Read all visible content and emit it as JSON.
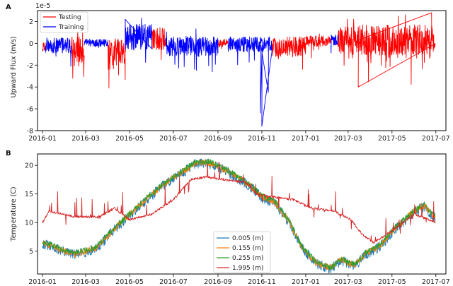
{
  "chart_data": [
    {
      "type": "line",
      "panel_label": "A",
      "ylabel": "Upward Flux (m/s)",
      "offset_text": "1e-5",
      "ylim": [
        -8,
        3
      ],
      "yticks": [
        2,
        0,
        -2,
        -4,
        -6,
        -8
      ],
      "xlim": [
        "2015-12-25",
        "2017-07-15"
      ],
      "xticks": [
        "2016-01",
        "2016-03",
        "2016-05",
        "2016-07",
        "2016-09",
        "2016-11",
        "2017-01",
        "2017-03",
        "2017-05",
        "2017-07"
      ],
      "legend": {
        "location": "upper-left"
      },
      "series": [
        {
          "name": "Testing",
          "color": "#ff0000",
          "segments": [
            {
              "start": "2016-01-01",
              "end": "2016-01-05",
              "mean": -0.3,
              "noise": 0.4
            },
            {
              "start": "2016-02-10",
              "end": "2016-02-28",
              "mean": -0.6,
              "noise": 1.2
            },
            {
              "start": "2016-04-01",
              "end": "2016-04-25",
              "mean": -0.8,
              "noise": 1.3
            },
            {
              "start": "2016-06-01",
              "end": "2016-06-20",
              "mean": 0.4,
              "noise": 1.0
            },
            {
              "start": "2016-09-01",
              "end": "2016-09-15",
              "mean": 0.1,
              "noise": 0.3
            },
            {
              "start": "2016-11-15",
              "end": "2017-01-01",
              "mean": -0.3,
              "noise": 0.9
            },
            {
              "start": "2017-01-01",
              "end": "2017-02-05",
              "mean": 0.2,
              "noise": 0.5
            },
            {
              "start": "2017-02-15",
              "end": "2017-06-30",
              "mean": 0.3,
              "noise": 1.4
            }
          ]
        },
        {
          "name": "Training",
          "color": "#0000ff",
          "segments": [
            {
              "start": "2016-01-05",
              "end": "2016-02-10",
              "mean": -0.2,
              "noise": 0.7
            },
            {
              "start": "2016-02-28",
              "end": "2016-04-01",
              "mean": 0.0,
              "noise": 0.4
            },
            {
              "start": "2016-04-25",
              "end": "2016-06-01",
              "mean": 0.6,
              "noise": 1.2
            },
            {
              "start": "2016-06-20",
              "end": "2016-09-01",
              "mean": -0.3,
              "noise": 0.9
            },
            {
              "start": "2016-09-15",
              "end": "2016-11-15",
              "mean": -0.1,
              "noise": 0.7
            },
            {
              "start": "2017-02-05",
              "end": "2017-02-15",
              "mean": 0.3,
              "noise": 0.5
            }
          ]
        }
      ],
      "notable_points": [
        {
          "x": "2016-11-01",
          "y": -7.6
        },
        {
          "x": "2016-10-30",
          "y": -6.4
        },
        {
          "x": "2016-11-10",
          "y": -4.5
        },
        {
          "x": "2017-03-15",
          "y": -4.0
        },
        {
          "x": "2016-04-25",
          "y": 2.2
        },
        {
          "x": "2017-06-25",
          "y": 2.8
        }
      ]
    },
    {
      "type": "line",
      "panel_label": "B",
      "ylabel": "Temperature (C)",
      "ylim": [
        1,
        22
      ],
      "yticks": [
        20,
        15,
        10,
        5
      ],
      "xlim": [
        "2015-12-25",
        "2017-07-15"
      ],
      "xticks": [
        "2016-01",
        "2016-03",
        "2016-05",
        "2016-07",
        "2016-09",
        "2016-11",
        "2017-01",
        "2017-03",
        "2017-05",
        "2017-07"
      ],
      "legend": {
        "location": "lower-center"
      },
      "series": [
        {
          "name": "0.005 (m)",
          "color": "#1f77b4",
          "noise": 0.9
        },
        {
          "name": "0.155 (m)",
          "color": "#ff7f0e",
          "noise": 0.6
        },
        {
          "name": "0.255 (m)",
          "color": "#2ca02c",
          "noise": 0.5
        },
        {
          "name": "1.995 (m)",
          "color": "#d62728",
          "noise": 0.2
        }
      ],
      "shallow_profile": [
        {
          "x": "2016-01-01",
          "y": 6.5
        },
        {
          "x": "2016-02-01",
          "y": 5.0
        },
        {
          "x": "2016-02-15",
          "y": 4.5
        },
        {
          "x": "2016-03-15",
          "y": 5.5
        },
        {
          "x": "2016-04-15",
          "y": 9.5
        },
        {
          "x": "2016-05-15",
          "y": 13.0
        },
        {
          "x": "2016-06-15",
          "y": 16.5
        },
        {
          "x": "2016-07-15",
          "y": 19.0
        },
        {
          "x": "2016-08-01",
          "y": 20.5
        },
        {
          "x": "2016-08-20",
          "y": 20.5
        },
        {
          "x": "2016-09-15",
          "y": 19.0
        },
        {
          "x": "2016-10-15",
          "y": 16.5
        },
        {
          "x": "2016-11-01",
          "y": 14.5
        },
        {
          "x": "2016-11-20",
          "y": 13.5
        },
        {
          "x": "2016-12-10",
          "y": 10.0
        },
        {
          "x": "2016-12-25",
          "y": 6.0
        },
        {
          "x": "2017-01-15",
          "y": 3.0
        },
        {
          "x": "2017-02-05",
          "y": 2.0
        },
        {
          "x": "2017-02-20",
          "y": 3.5
        },
        {
          "x": "2017-03-10",
          "y": 2.5
        },
        {
          "x": "2017-03-25",
          "y": 4.5
        },
        {
          "x": "2017-04-15",
          "y": 6.0
        },
        {
          "x": "2017-05-05",
          "y": 9.0
        },
        {
          "x": "2017-06-01",
          "y": 12.0
        },
        {
          "x": "2017-06-15",
          "y": 13.0
        },
        {
          "x": "2017-06-28",
          "y": 11.0
        }
      ],
      "deep_profile": [
        {
          "x": "2016-01-01",
          "y": 10.0
        },
        {
          "x": "2016-01-10",
          "y": 12.0
        },
        {
          "x": "2016-02-15",
          "y": 11.0
        },
        {
          "x": "2016-03-20",
          "y": 11.0
        },
        {
          "x": "2016-04-10",
          "y": 12.5
        },
        {
          "x": "2016-05-01",
          "y": 10.5
        },
        {
          "x": "2016-06-01",
          "y": 11.5
        },
        {
          "x": "2016-07-01",
          "y": 14.0
        },
        {
          "x": "2016-07-25",
          "y": 17.5
        },
        {
          "x": "2016-08-15",
          "y": 18.0
        },
        {
          "x": "2016-09-10",
          "y": 17.5
        },
        {
          "x": "2016-10-10",
          "y": 17.0
        },
        {
          "x": "2016-10-25",
          "y": 15.0
        },
        {
          "x": "2016-11-15",
          "y": 14.5
        },
        {
          "x": "2016-12-15",
          "y": 14.0
        },
        {
          "x": "2017-01-10",
          "y": 12.5
        },
        {
          "x": "2017-02-10",
          "y": 12.0
        },
        {
          "x": "2017-03-05",
          "y": 10.5
        },
        {
          "x": "2017-03-20",
          "y": 8.0
        },
        {
          "x": "2017-04-05",
          "y": 6.5
        },
        {
          "x": "2017-05-01",
          "y": 8.5
        },
        {
          "x": "2017-06-01",
          "y": 11.5
        },
        {
          "x": "2017-06-30",
          "y": 10.0
        }
      ]
    }
  ]
}
